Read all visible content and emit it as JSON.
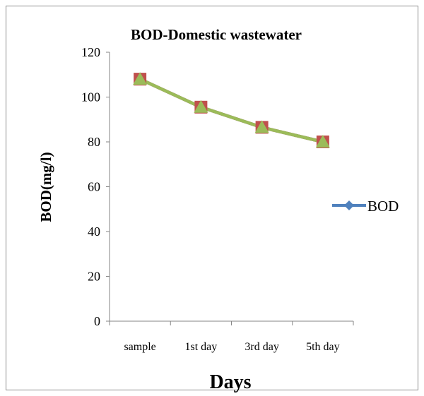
{
  "chart_data": {
    "type": "line",
    "title": "BOD-Domestic wastewater",
    "xlabel": "Days",
    "ylabel": "BOD(mg/l)",
    "categories": [
      "sample",
      "1st day",
      "3rd day",
      "5th day"
    ],
    "ylim": [
      0,
      120
    ],
    "yticks": [
      0,
      20,
      40,
      60,
      80,
      100,
      120
    ],
    "grid": false,
    "legend_position": "right",
    "series": [
      {
        "name": "BOD",
        "values": [
          108,
          95.5,
          86.5,
          80
        ],
        "line_color": "#4f81bd",
        "marker": "diamond"
      },
      {
        "name": "",
        "values": [
          108,
          95.5,
          86.5,
          80
        ],
        "line_color": "#c0504d",
        "marker": "square"
      },
      {
        "name": "",
        "values": [
          108,
          95.5,
          86.5,
          80
        ],
        "line_color": "#9bbb59",
        "marker": "triangle"
      }
    ]
  }
}
